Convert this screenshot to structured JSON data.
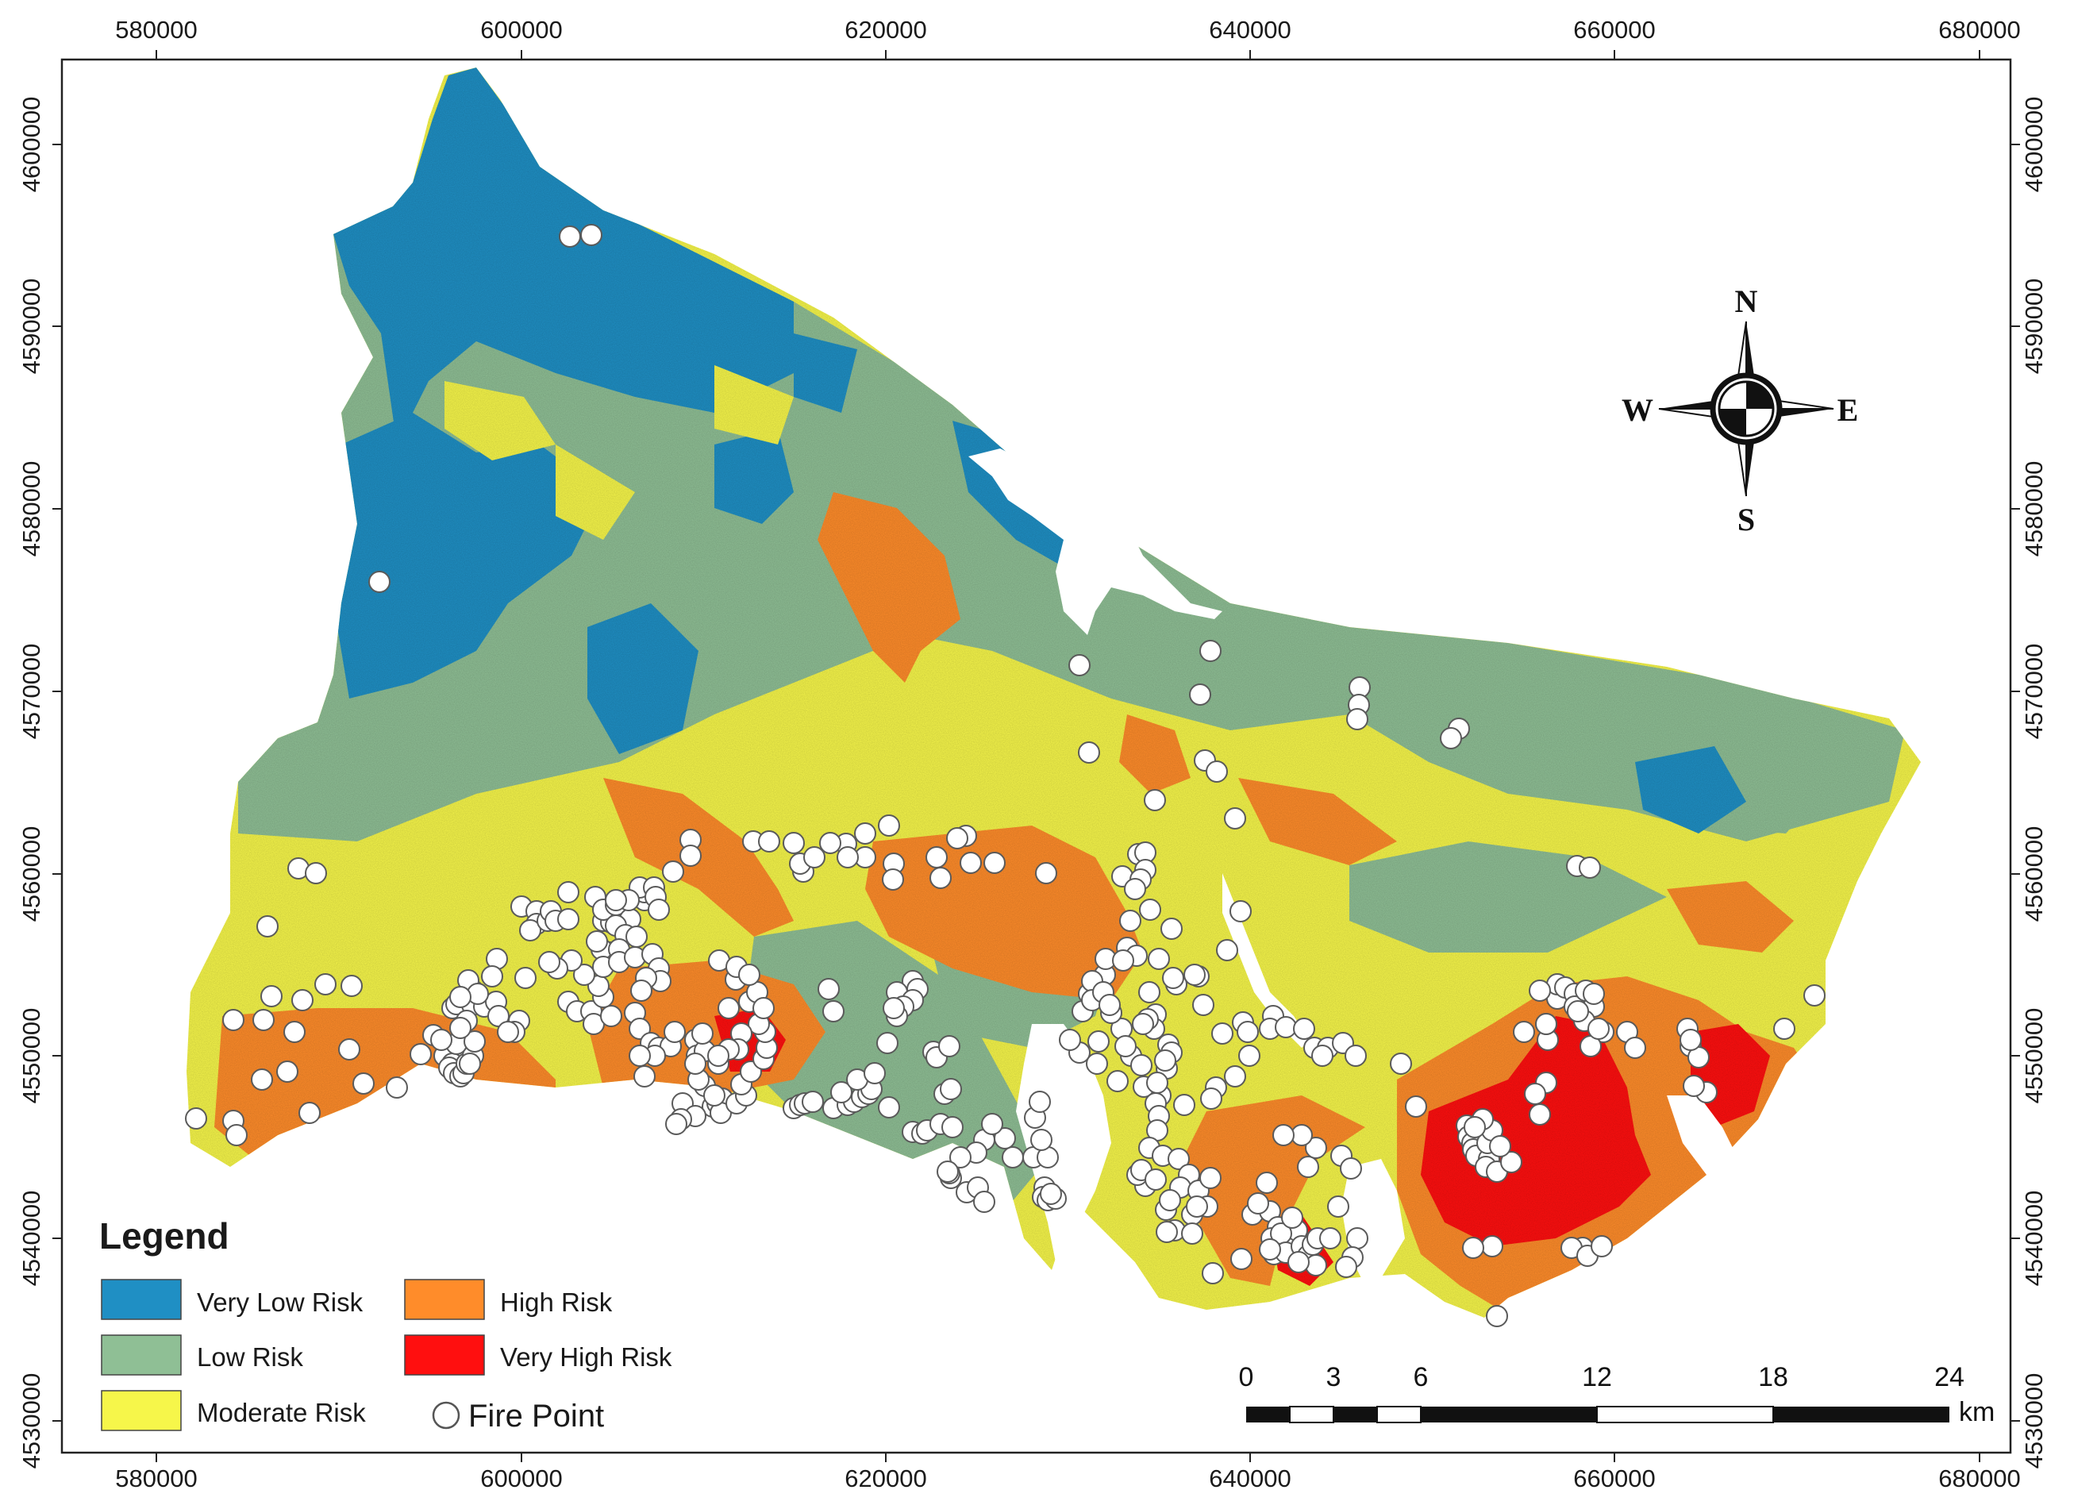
{
  "map": {
    "x_ticks": [
      "580000",
      "600000",
      "620000",
      "640000",
      "660000",
      "680000"
    ],
    "y_ticks": [
      "4600000",
      "4590000",
      "4580000",
      "4570000",
      "4560000",
      "4550000",
      "4540000",
      "4530000"
    ]
  },
  "legend": {
    "title": "Legend",
    "items": [
      {
        "label": "Very Low Risk",
        "color": "#1f8fc4"
      },
      {
        "label": "Low Risk",
        "color": "#8fbf95"
      },
      {
        "label": "Moderate Risk",
        "color": "#f6f64a"
      },
      {
        "label": "High Risk",
        "color": "#ff8c2a"
      },
      {
        "label": "Very High Risk",
        "color": "#ff0f0f"
      }
    ],
    "fire_point_label": "Fire Point"
  },
  "compass": {
    "n": "N",
    "s": "S",
    "e": "E",
    "w": "W"
  },
  "scale_bar": {
    "labels": [
      "0",
      "3",
      "6",
      "12",
      "18",
      "24"
    ],
    "unit": "km"
  }
}
